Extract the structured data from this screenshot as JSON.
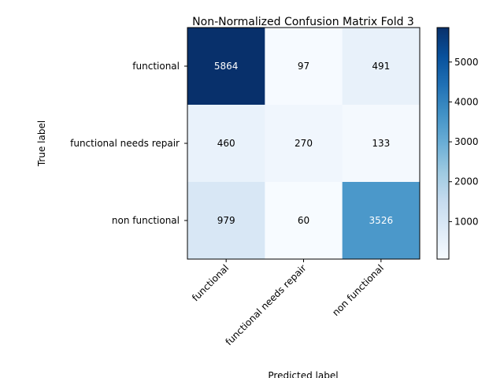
{
  "chart_data": {
    "type": "heatmap",
    "title": "Non-Normalized Confusion Matrix Fold 3",
    "xlabel": "Predicted label",
    "ylabel": "True label",
    "x_categories": [
      "functional",
      "functional needs repair",
      "non functional"
    ],
    "y_categories": [
      "functional",
      "functional needs repair",
      "non functional"
    ],
    "values": [
      [
        5864,
        97,
        491
      ],
      [
        460,
        270,
        133
      ],
      [
        979,
        60,
        3526
      ]
    ],
    "colormap": "Blues",
    "colorbar": {
      "range": [
        60,
        5864
      ],
      "ticks": [
        1000,
        2000,
        3000,
        4000,
        5000
      ]
    }
  }
}
